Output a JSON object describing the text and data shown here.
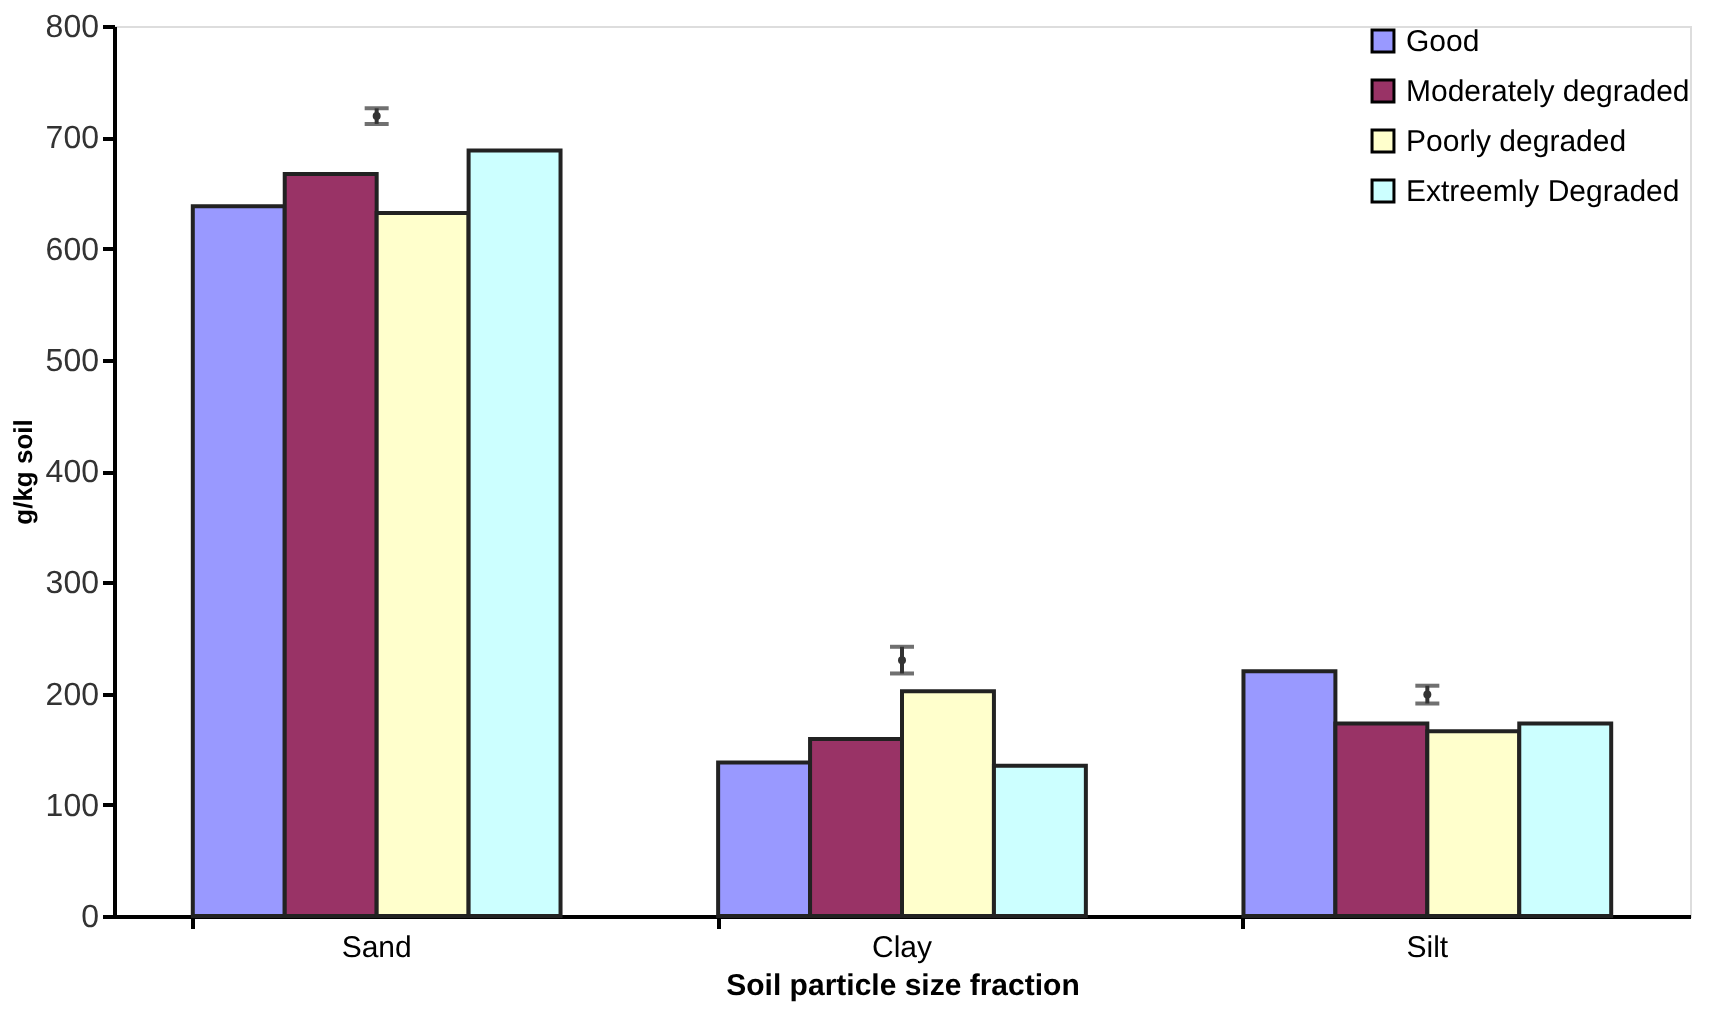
{
  "chart_data": {
    "type": "bar",
    "xlabel": "Soil particle size fraction",
    "ylabel": "g/kg soil",
    "categories": [
      "Sand",
      "Clay",
      "Silt"
    ],
    "series": [
      {
        "name": "Good",
        "color": "#9999ff",
        "values": [
          638,
          138,
          220
        ]
      },
      {
        "name": "Moderately degraded",
        "color": "#993366",
        "values": [
          667,
          159,
          173
        ]
      },
      {
        "name": "Poorly degraded",
        "color": "#ffffcc",
        "values": [
          632,
          202,
          166
        ]
      },
      {
        "name": "Extreemly Degraded",
        "color": "#ccffff",
        "values": [
          688,
          135,
          173
        ]
      },
      {
        "type": "scatter",
        "x": [
          "Sand",
          "Clay",
          "Silt"
        ],
        "values": [
          719,
          230,
          199
        ],
        "errors": [
          7,
          12,
          8
        ],
        "color": "#333333",
        "marker": "circle"
      }
    ],
    "ylim": [
      0,
      800
    ],
    "yticks": [
      0,
      100,
      200,
      300,
      400,
      500,
      600,
      700,
      800
    ],
    "legend": "top right"
  }
}
